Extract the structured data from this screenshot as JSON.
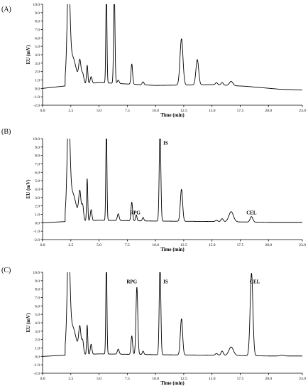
{
  "chart_data": [
    {
      "type": "line",
      "panel_label": "(A)",
      "ylabel": "EU (mV)",
      "xlabel": "Time (min)",
      "xlim": [
        0.0,
        23.0
      ],
      "ylim": [
        -2.0,
        10.0
      ],
      "xticks": [
        "0.0",
        "2.5",
        "5.0",
        "7.5",
        "10.0",
        "12.5",
        "15.0",
        "17.5",
        "20.0",
        "23.0"
      ],
      "yticks": [
        "-2.0",
        "-1.0",
        "0.0",
        "1.0",
        "2.0",
        "3.0",
        "4.0",
        "5.0",
        "6.0",
        "7.0",
        "8.0",
        "9.0",
        "10.0"
      ],
      "baseline": [
        [
          0.0,
          0.0
        ],
        [
          2.0,
          0.25
        ],
        [
          5.0,
          0.7
        ],
        [
          10.0,
          0.35
        ],
        [
          15.0,
          0.45
        ],
        [
          18.0,
          0.25
        ],
        [
          21.0,
          -0.1
        ],
        [
          23.0,
          -0.2
        ]
      ],
      "peaks": [
        {
          "t": 2.3,
          "h": 11.0,
          "w": 0.12
        },
        {
          "t": 2.6,
          "h": 3.5,
          "w": 0.35
        },
        {
          "t": 3.3,
          "h": 2.5,
          "w": 0.1
        },
        {
          "t": 3.55,
          "h": 1.2,
          "w": 0.1
        },
        {
          "t": 3.95,
          "h": 2.2,
          "w": 0.06
        },
        {
          "t": 4.3,
          "h": 0.8,
          "w": 0.08
        },
        {
          "t": 5.65,
          "h": 11.0,
          "w": 0.05
        },
        {
          "t": 6.35,
          "h": 11.0,
          "w": 0.06
        },
        {
          "t": 6.7,
          "h": 0.4,
          "w": 0.08
        },
        {
          "t": 7.9,
          "h": 2.4,
          "w": 0.07
        },
        {
          "t": 8.9,
          "h": 0.35,
          "w": 0.08
        },
        {
          "t": 12.3,
          "h": 5.5,
          "w": 0.13
        },
        {
          "t": 13.7,
          "h": 3.0,
          "w": 0.12
        },
        {
          "t": 15.4,
          "h": 0.25,
          "w": 0.1
        },
        {
          "t": 15.9,
          "h": 0.3,
          "w": 0.1
        },
        {
          "t": 16.7,
          "h": 0.5,
          "w": 0.15
        }
      ],
      "annotations": []
    },
    {
      "type": "line",
      "panel_label": "(B)",
      "ylabel": "EU (mV)",
      "xlabel": "Time (min)",
      "xlim": [
        0.0,
        23.0
      ],
      "ylim": [
        -2.0,
        10.0
      ],
      "xticks": [
        "0.0",
        "2.5",
        "5.0",
        "7.5",
        "10.0",
        "12.5",
        "15.0",
        "17.5",
        "20.0",
        "23.0"
      ],
      "yticks": [
        "-2.0",
        "-1.0",
        "0.0",
        "1.0",
        "2.0",
        "3.0",
        "4.0",
        "5.0",
        "6.0",
        "7.0",
        "8.0",
        "9.0",
        "10.0"
      ],
      "baseline": [
        [
          0.0,
          0.0
        ],
        [
          2.0,
          0.1
        ],
        [
          5.0,
          0.3
        ],
        [
          10.0,
          0.2
        ],
        [
          15.0,
          0.15
        ],
        [
          20.0,
          0.05
        ],
        [
          23.0,
          0.05
        ]
      ],
      "peaks": [
        {
          "t": 2.3,
          "h": 11.0,
          "w": 0.12
        },
        {
          "t": 2.6,
          "h": 3.5,
          "w": 0.35
        },
        {
          "t": 3.3,
          "h": 3.2,
          "w": 0.1
        },
        {
          "t": 3.55,
          "h": 1.8,
          "w": 0.08
        },
        {
          "t": 3.95,
          "h": 5.0,
          "w": 0.05
        },
        {
          "t": 4.3,
          "h": 1.3,
          "w": 0.07
        },
        {
          "t": 5.65,
          "h": 11.0,
          "w": 0.05
        },
        {
          "t": 6.7,
          "h": 0.8,
          "w": 0.08
        },
        {
          "t": 7.9,
          "h": 2.2,
          "w": 0.07
        },
        {
          "t": 8.3,
          "h": 0.7,
          "w": 0.06
        },
        {
          "t": 8.9,
          "h": 0.4,
          "w": 0.07
        },
        {
          "t": 10.4,
          "h": 11.0,
          "w": 0.07
        },
        {
          "t": 12.3,
          "h": 3.8,
          "w": 0.1
        },
        {
          "t": 15.4,
          "h": 0.15,
          "w": 0.1
        },
        {
          "t": 15.9,
          "h": 0.35,
          "w": 0.1
        },
        {
          "t": 16.7,
          "h": 1.2,
          "w": 0.2
        },
        {
          "t": 18.5,
          "h": 0.65,
          "w": 0.12
        }
      ],
      "annotations": [
        {
          "text": "RPG",
          "x": 8.2,
          "y": 1.0
        },
        {
          "text": "IS",
          "x": 10.9,
          "y": 9.3
        },
        {
          "text": "CEL",
          "x": 18.5,
          "y": 1.0
        }
      ]
    },
    {
      "type": "line",
      "panel_label": "(C)",
      "ylabel": "EU (mV)",
      "xlabel": "Time (min)",
      "xlim": [
        0.0,
        23.0
      ],
      "ylim": [
        -2.0,
        10.0
      ],
      "xticks": [
        "0.0",
        "2.5",
        "5.0",
        "7.5",
        "10.0",
        "12.5",
        "15.0",
        "17.5",
        "20.0",
        "23.0"
      ],
      "yticks": [
        "-2.0",
        "-1.0",
        "0.0",
        "1.0",
        "2.0",
        "3.0",
        "4.0",
        "5.0",
        "6.0",
        "7.0",
        "8.0",
        "9.0",
        "10.0"
      ],
      "baseline": [
        [
          0.0,
          0.0
        ],
        [
          2.0,
          0.1
        ],
        [
          5.0,
          0.3
        ],
        [
          10.0,
          0.2
        ],
        [
          15.0,
          0.15
        ],
        [
          20.0,
          0.05
        ],
        [
          23.0,
          0.05
        ]
      ],
      "peaks": [
        {
          "t": 2.3,
          "h": 11.0,
          "w": 0.12
        },
        {
          "t": 2.6,
          "h": 3.5,
          "w": 0.35
        },
        {
          "t": 3.3,
          "h": 3.0,
          "w": 0.1
        },
        {
          "t": 3.55,
          "h": 1.6,
          "w": 0.08
        },
        {
          "t": 3.95,
          "h": 3.5,
          "w": 0.05
        },
        {
          "t": 4.3,
          "h": 1.2,
          "w": 0.07
        },
        {
          "t": 5.65,
          "h": 11.0,
          "w": 0.05
        },
        {
          "t": 6.7,
          "h": 0.6,
          "w": 0.08
        },
        {
          "t": 7.9,
          "h": 2.2,
          "w": 0.07
        },
        {
          "t": 8.35,
          "h": 8.0,
          "w": 0.08
        },
        {
          "t": 8.9,
          "h": 0.4,
          "w": 0.07
        },
        {
          "t": 10.4,
          "h": 11.0,
          "w": 0.07
        },
        {
          "t": 12.3,
          "h": 4.3,
          "w": 0.1
        },
        {
          "t": 15.4,
          "h": 0.2,
          "w": 0.1
        },
        {
          "t": 15.9,
          "h": 0.5,
          "w": 0.1
        },
        {
          "t": 16.7,
          "h": 1.0,
          "w": 0.2
        },
        {
          "t": 18.5,
          "h": 9.8,
          "w": 0.12
        },
        {
          "t": 21.2,
          "h": 0.1,
          "w": 0.15
        }
      ],
      "annotations": [
        {
          "text": "RPG",
          "x": 7.9,
          "y": 8.7
        },
        {
          "text": "IS",
          "x": 10.9,
          "y": 8.7
        },
        {
          "text": "CEL",
          "x": 18.8,
          "y": 8.7
        }
      ]
    }
  ]
}
